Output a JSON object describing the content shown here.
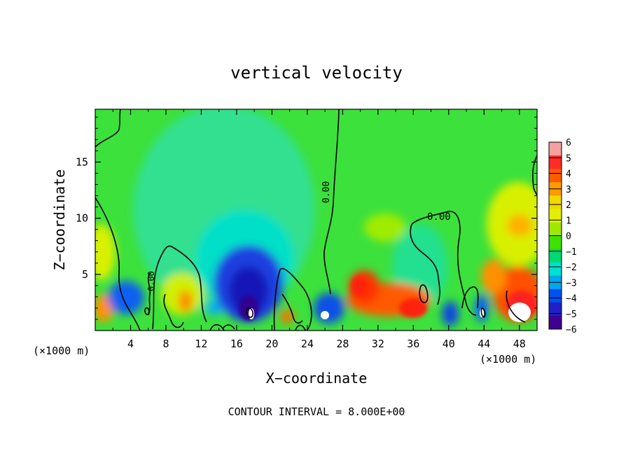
{
  "chart_data": {
    "type": "heatmap",
    "title": "vertical velocity",
    "xlabel": "X−coordinate",
    "ylabel": "Z−coordinate",
    "x_unit_left": "(×1000 m)",
    "x_unit_right": "(×1000 m)",
    "footer": "CONTOUR INTERVAL = 8.000E+00",
    "xlim": [
      0,
      50
    ],
    "ylim": [
      0,
      19.7
    ],
    "x_ticks": [
      "4",
      "8",
      "12",
      "16",
      "20",
      "24",
      "28",
      "32",
      "36",
      "40",
      "44",
      "48"
    ],
    "y_ticks": [
      "5",
      "10",
      "15"
    ],
    "colorbar": {
      "ticks": [
        "6",
        "5",
        "4",
        "3",
        "2",
        "1",
        "0",
        "−1",
        "−2",
        "−3",
        "−4",
        "−5",
        "−6"
      ],
      "range": [
        -6,
        6
      ],
      "colors": [
        "#f4a0a0",
        "#ff2a2a",
        "#ff5a00",
        "#ff9a00",
        "#f0d800",
        "#e0f000",
        "#a0e800",
        "#40e000",
        "#00d870",
        "#00e0d0",
        "#00a8f0",
        "#0050f0",
        "#2020c8",
        "#400090"
      ]
    },
    "contour_label": "0.00",
    "background_color": "#3ce13c"
  }
}
